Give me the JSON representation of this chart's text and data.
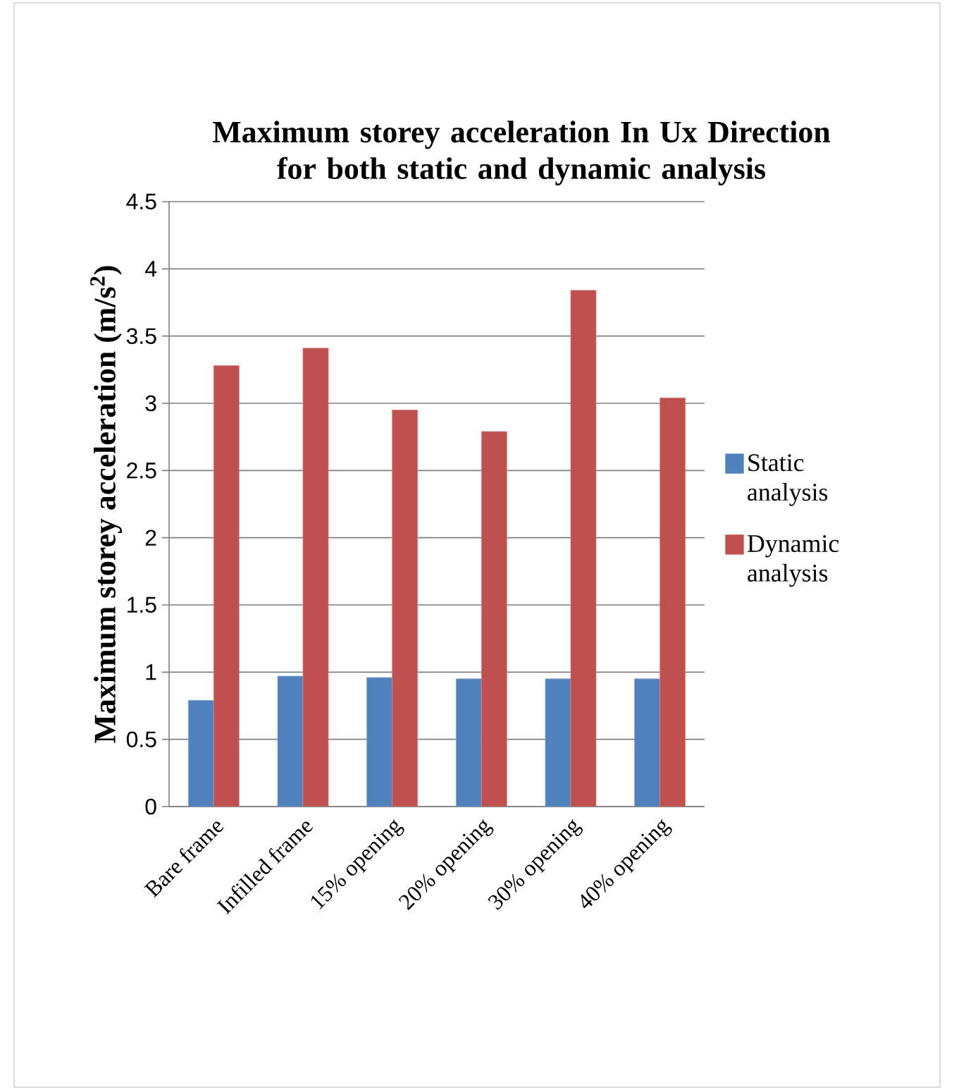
{
  "chart_data": {
    "type": "bar",
    "title": "Maximum storey acceleration In Ux Direction for both static and dynamic analysis",
    "ylabel": "Maximum storey acceleration (m/s$^{2}$)",
    "categories": [
      "Bare frame",
      "Infilled frame",
      "15% opening",
      "20% opening",
      "30% opening",
      "40% opening"
    ],
    "series": [
      {
        "name": "Static analysis",
        "color": "#4f81bd",
        "values": [
          0.79,
          0.97,
          0.96,
          0.95,
          0.95,
          0.95
        ]
      },
      {
        "name": "Dynamic analysis",
        "color": "#c0504d",
        "values": [
          3.28,
          3.41,
          2.95,
          2.79,
          3.84,
          3.04
        ]
      }
    ],
    "ylim": [
      0,
      4.5
    ],
    "yticks": [
      0,
      0.5,
      1,
      1.5,
      2,
      2.5,
      3,
      3.5,
      4,
      4.5
    ],
    "grid": "y",
    "legend": "right"
  }
}
